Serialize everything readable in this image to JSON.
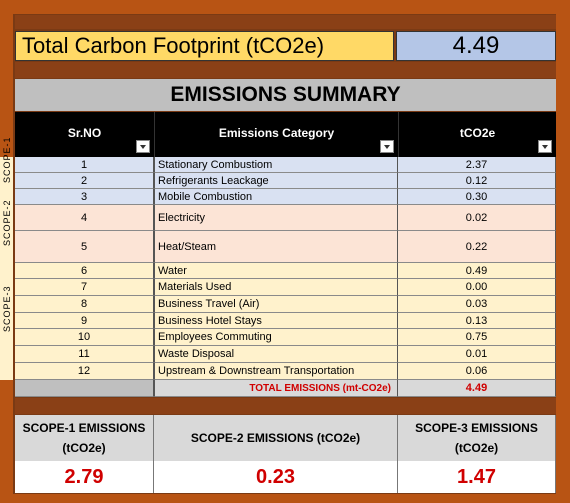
{
  "title": "Total Carbon Footprint (tCO2e)",
  "total": "4.49",
  "summary_title": "EMISSIONS SUMMARY",
  "headers": {
    "srno": "Sr.NO",
    "category": "Emissions Category",
    "value": "tCO2e"
  },
  "scope_labels": {
    "scope1": "SCOPE-1",
    "scope2": "SCOPE-2",
    "scope3": "SCOPE-3"
  },
  "rows": [
    {
      "no": "1",
      "category": "Stationary Combustiom",
      "value": "2.37"
    },
    {
      "no": "2",
      "category": "Refrigerants Leackage",
      "value": "0.12"
    },
    {
      "no": "3",
      "category": "Mobile Combustion",
      "value": "0.30"
    },
    {
      "no": "4",
      "category": "Electricity",
      "value": "0.02"
    },
    {
      "no": "5",
      "category": "Heat/Steam",
      "value": "0.22"
    },
    {
      "no": "6",
      "category": "Water",
      "value": "0.49"
    },
    {
      "no": "7",
      "category": "Materials Used",
      "value": "0.00"
    },
    {
      "no": "8",
      "category": "Business Travel (Air)",
      "value": "0.03"
    },
    {
      "no": "9",
      "category": "Business Hotel Stays",
      "value": "0.13"
    },
    {
      "no": "10",
      "category": "Employees Commuting",
      "value": "0.75"
    },
    {
      "no": "11",
      "category": "Waste Disposal",
      "value": "0.01"
    },
    {
      "no": "12",
      "category": "Upstream & Downstream Transportation",
      "value": "0.06"
    }
  ],
  "total_row": {
    "label": "TOTAL EMISSIONS (mt-CO2e)",
    "value": "4.49"
  },
  "scope_summary": {
    "scope1_label": "SCOPE-1 EMISSIONS (tCO2e)",
    "scope1_value": "2.79",
    "scope2_label": "SCOPE-2 EMISSIONS (tCO2e)",
    "scope2_value": "0.23",
    "scope3_label": "SCOPE-3 EMISSIONS (tCO2e)",
    "scope3_value": "1.47"
  },
  "colors": {
    "scope1": "#d9e1f2",
    "scope2": "#fce4d6",
    "scope3": "#fff2cc",
    "accent": "#d00000"
  }
}
